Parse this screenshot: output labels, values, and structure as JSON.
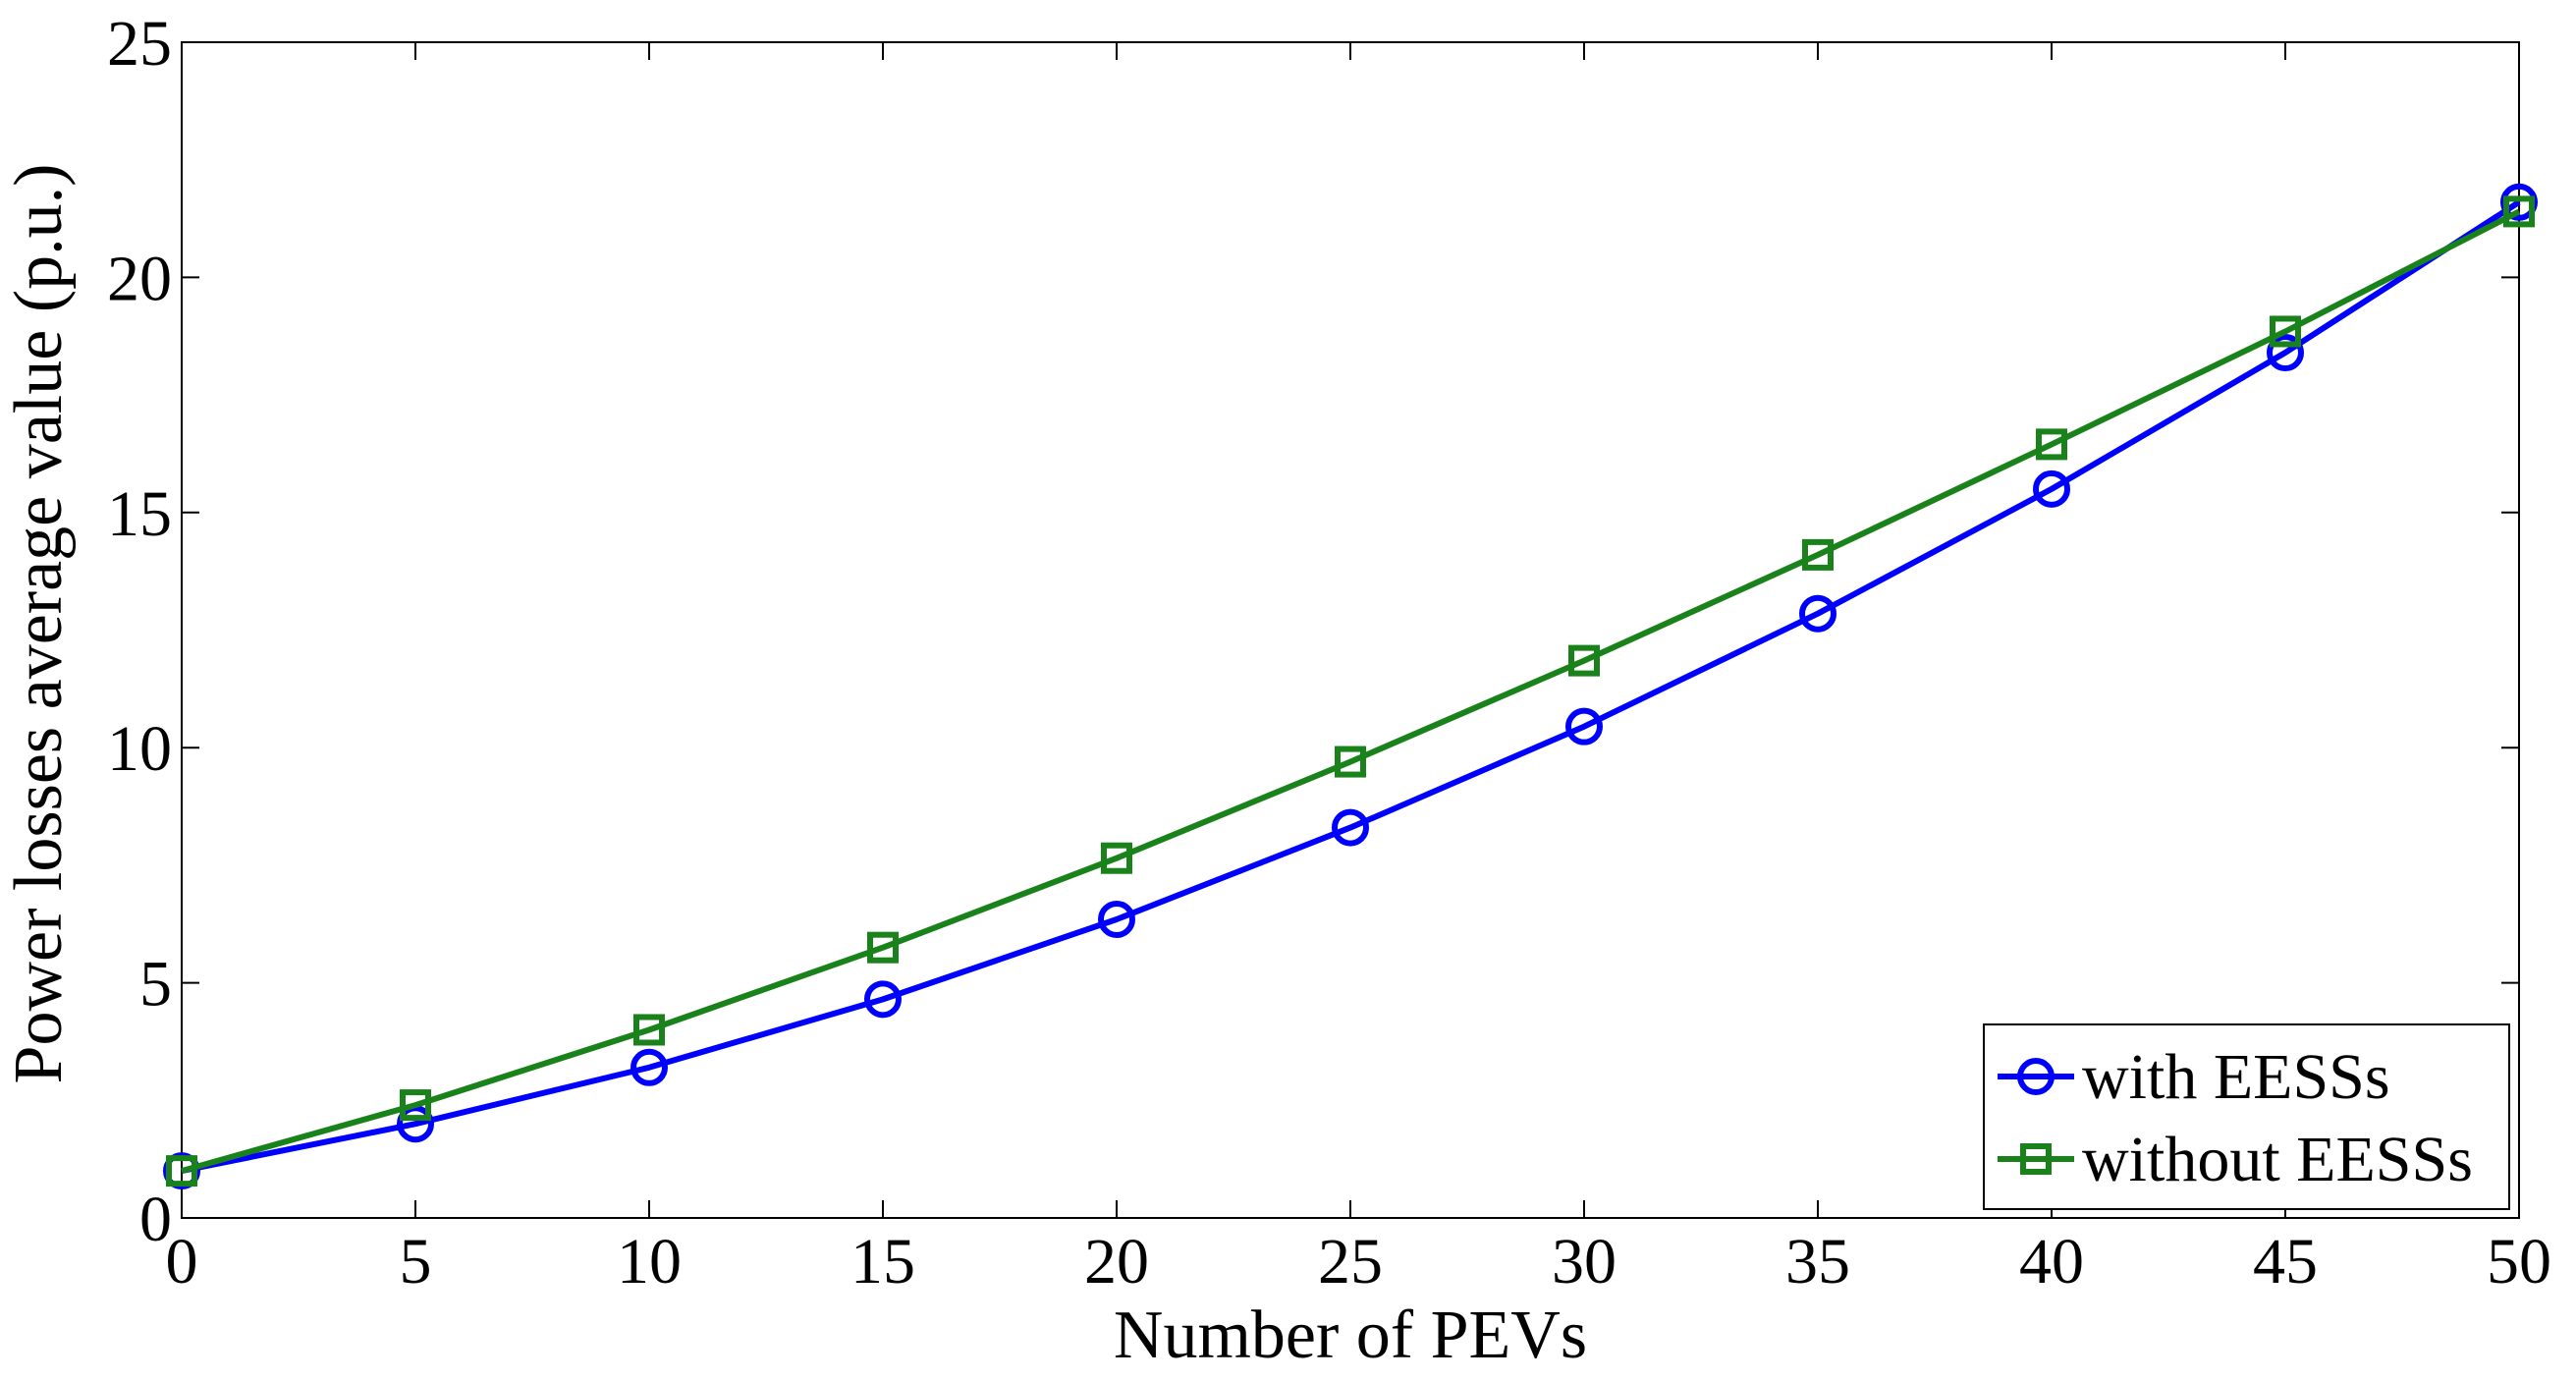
{
  "chart_data": {
    "type": "line",
    "title": "",
    "xlabel": "Number of PEVs",
    "ylabel": "Power losses average value (p.u.)",
    "xlim": [
      0,
      50
    ],
    "ylim": [
      0,
      25
    ],
    "xticks": [
      0,
      5,
      10,
      15,
      20,
      25,
      30,
      35,
      40,
      45,
      50
    ],
    "yticks": [
      0,
      5,
      10,
      15,
      20,
      25
    ],
    "grid": false,
    "legend_position": "bottom-right",
    "x": [
      0,
      5,
      10,
      15,
      20,
      25,
      30,
      35,
      40,
      45,
      50
    ],
    "series": [
      {
        "name": "with EESSs",
        "marker": "circle",
        "color": "#0000ff",
        "values": [
          1.0,
          2.0,
          3.2,
          4.65,
          6.35,
          8.3,
          10.45,
          12.85,
          15.5,
          18.4,
          21.6
        ]
      },
      {
        "name": "without EESSs",
        "marker": "square",
        "color": "#1a821a",
        "values": [
          1.0,
          2.4,
          4.0,
          5.75,
          7.65,
          9.7,
          11.85,
          14.1,
          16.45,
          18.85,
          21.4
        ]
      }
    ]
  }
}
